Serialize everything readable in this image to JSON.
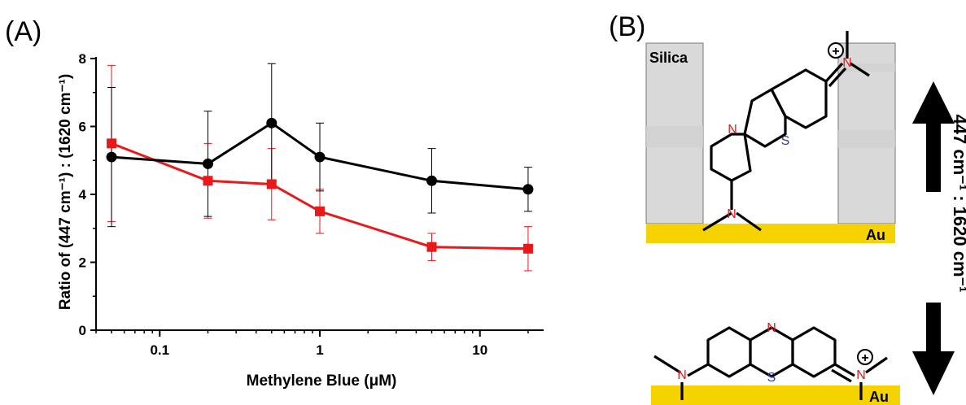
{
  "panel_a": {
    "label": "(A)",
    "xlabel": "Methylene Blue (μM)",
    "ylabel": "Ratio of (447 cm⁻¹) : (1620 cm⁻¹)"
  },
  "panel_b": {
    "label": "(B)",
    "silica_label": "Silica",
    "au_label_top": "Au",
    "au_label_bottom": "Au",
    "n_atom": "N",
    "s_atom": "S",
    "plus_sign": "+",
    "arrow_label": "447 cm⁻¹ : 1620 cm⁻¹"
  },
  "colors": {
    "black_series": "#000000",
    "red_series": "#e8181b",
    "gold": "#f6d300",
    "silica": "#d9d9d9",
    "nitrogen": "#e8181b",
    "sulfur": "#2b3a9a"
  },
  "chart_data": {
    "type": "line",
    "xscale": "log",
    "xlabel": "Methylene Blue (μM)",
    "ylabel": "Ratio of (447 cm⁻¹) : (1620 cm⁻¹)",
    "xlim": [
      0.04,
      25
    ],
    "ylim": [
      0,
      8
    ],
    "x_ticks": [
      0.1,
      1,
      10
    ],
    "x_tick_labels": [
      "0.1",
      "1",
      "10"
    ],
    "y_ticks": [
      0,
      2,
      4,
      6,
      8
    ],
    "y_tick_labels": [
      "0",
      "2",
      "4",
      "6",
      "8"
    ],
    "grid": false,
    "series": [
      {
        "marker": "circle",
        "color": "#000000",
        "x": [
          0.05,
          0.2,
          0.5,
          1,
          5,
          20
        ],
        "y": [
          5.1,
          4.9,
          6.1,
          5.1,
          4.4,
          4.15
        ],
        "err_low": [
          2.05,
          1.55,
          1.75,
          1.0,
          0.95,
          0.65
        ],
        "err_high": [
          2.05,
          1.55,
          1.75,
          1.0,
          0.95,
          0.65
        ]
      },
      {
        "marker": "square",
        "color": "#e8181b",
        "x": [
          0.05,
          0.2,
          0.5,
          1,
          5,
          20
        ],
        "y": [
          5.5,
          4.4,
          4.3,
          3.5,
          2.45,
          2.4
        ],
        "err_low": [
          2.3,
          1.1,
          1.05,
          0.65,
          0.4,
          0.65
        ],
        "err_high": [
          2.3,
          1.1,
          1.05,
          0.65,
          0.4,
          0.65
        ]
      }
    ]
  }
}
